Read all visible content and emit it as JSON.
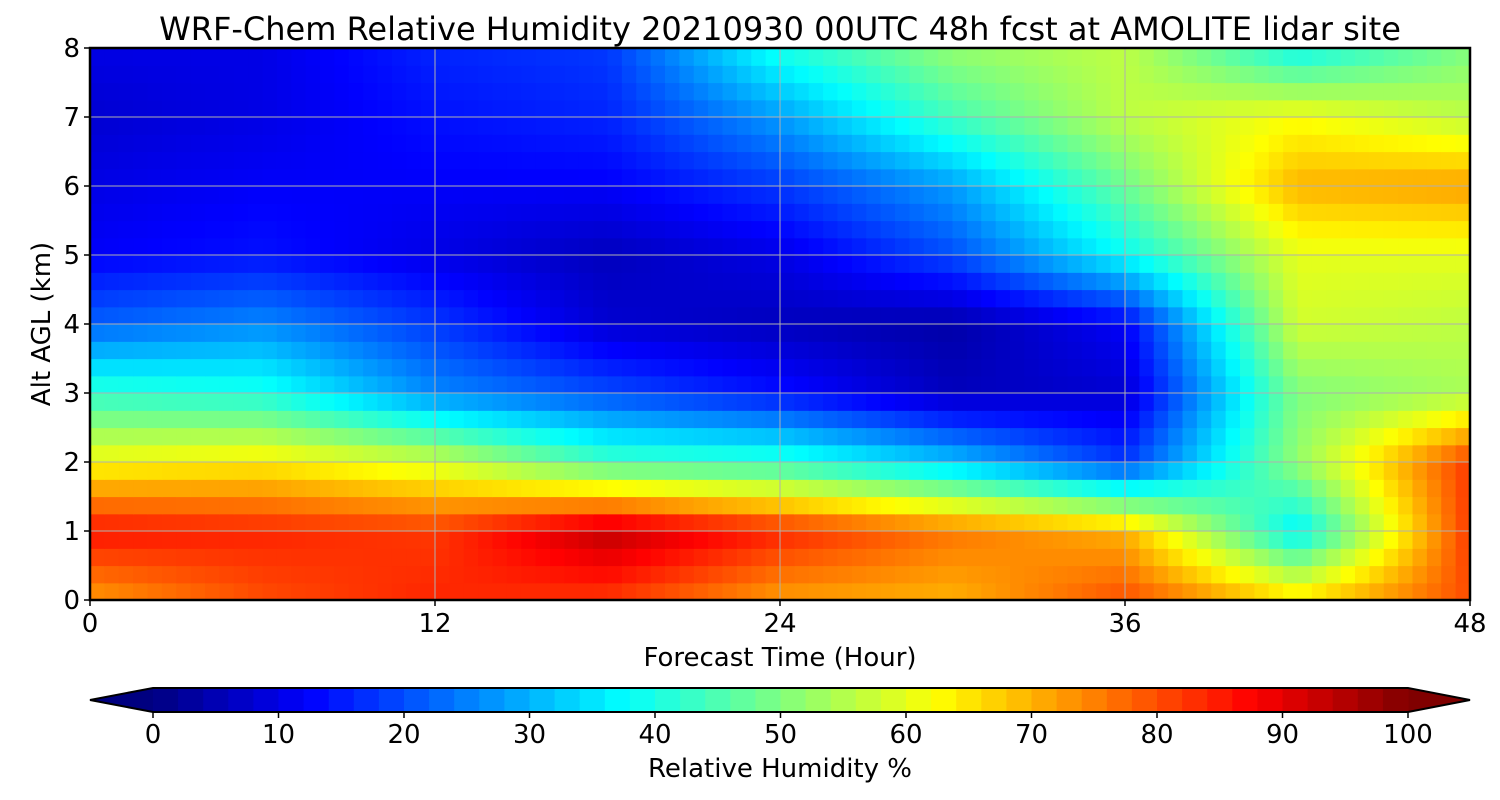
{
  "chart_data": {
    "type": "heatmap",
    "title": "WRF-Chem Relative Humidity 20210930 00UTC 48h fcst at AMOLITE lidar site",
    "xlabel": "Forecast Time (Hour)",
    "ylabel": "Alt AGL (km)",
    "xlim": [
      0,
      48
    ],
    "ylim": [
      0,
      8
    ],
    "xticks": [
      "0",
      "12",
      "24",
      "36",
      "48"
    ],
    "yticks": [
      "0",
      "1",
      "2",
      "3",
      "4",
      "5",
      "6",
      "7",
      "8"
    ],
    "grid": true,
    "colormap": "jet",
    "colorbar": {
      "label": "Relative Humidity %",
      "min": 0,
      "max": 100,
      "ticks": [
        "0",
        "10",
        "20",
        "30",
        "40",
        "50",
        "60",
        "70",
        "80",
        "90",
        "100"
      ],
      "extend": "both"
    },
    "x": [
      0,
      6,
      12,
      18,
      24,
      30,
      36,
      42,
      48
    ],
    "y": [
      0,
      1,
      2,
      3,
      4,
      5,
      6,
      7,
      8
    ],
    "z": [
      [
        72,
        80,
        84,
        82,
        72,
        70,
        80,
        66,
        80
      ],
      [
        86,
        84,
        82,
        94,
        84,
        76,
        70,
        36,
        82
      ],
      [
        62,
        64,
        58,
        44,
        42,
        32,
        18,
        52,
        82
      ],
      [
        42,
        40,
        26,
        20,
        14,
        6,
        8,
        50,
        54
      ],
      [
        22,
        26,
        18,
        8,
        6,
        4,
        12,
        58,
        56
      ],
      [
        12,
        14,
        10,
        6,
        10,
        20,
        38,
        60,
        60
      ],
      [
        10,
        12,
        12,
        12,
        18,
        28,
        48,
        70,
        72
      ],
      [
        8,
        10,
        14,
        16,
        28,
        44,
        56,
        62,
        56
      ],
      [
        10,
        10,
        16,
        18,
        40,
        52,
        56,
        38,
        50
      ]
    ]
  }
}
